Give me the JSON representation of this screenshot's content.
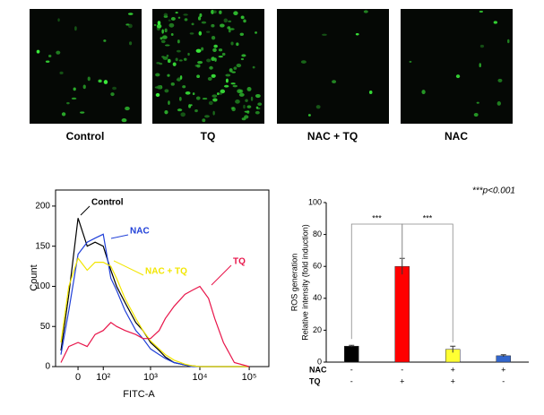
{
  "images": {
    "labels": [
      "Control",
      "TQ",
      "NAC + TQ",
      "NAC"
    ]
  },
  "chart_data": [
    {
      "type": "line",
      "xlabel": "FITC-A",
      "ylabel": "Count",
      "xscale": "biexponential",
      "x": [
        -60,
        -30,
        0,
        30,
        60,
        100,
        150,
        200,
        300,
        500,
        700,
        1000,
        1500,
        2000,
        3000,
        5000,
        7000,
        10000,
        15000,
        20000,
        30000,
        50000,
        100000
      ],
      "series": [
        {
          "name": "Control",
          "color": "#000000",
          "values": [
            20,
            90,
            185,
            150,
            155,
            150,
            120,
            100,
            80,
            55,
            45,
            30,
            20,
            12,
            5,
            2,
            1,
            0,
            0,
            0,
            0,
            0,
            0
          ]
        },
        {
          "name": "NAC",
          "color": "#1f3fd8",
          "values": [
            15,
            70,
            140,
            155,
            160,
            165,
            110,
            95,
            70,
            45,
            35,
            22,
            15,
            10,
            5,
            2,
            0,
            0,
            0,
            0,
            0,
            0,
            0
          ]
        },
        {
          "name": "NAC + TQ",
          "color": "#f2e600",
          "values": [
            30,
            100,
            135,
            120,
            130,
            130,
            125,
            110,
            85,
            60,
            45,
            32,
            22,
            15,
            8,
            3,
            1,
            0,
            0,
            0,
            0,
            0,
            0
          ]
        },
        {
          "name": "TQ",
          "color": "#e8154a",
          "values": [
            5,
            25,
            30,
            25,
            40,
            45,
            55,
            50,
            45,
            40,
            35,
            35,
            45,
            60,
            75,
            90,
            95,
            100,
            85,
            60,
            30,
            5,
            0
          ]
        }
      ],
      "xlim": [
        -85,
        250000
      ],
      "xticks": [
        0,
        {
          "value": 100,
          "label": "10²"
        },
        {
          "value": 1000,
          "label": "10³"
        },
        {
          "value": 10000,
          "label": "10⁴"
        },
        {
          "value": 100000,
          "label": "10⁵"
        }
      ],
      "ylim": [
        0,
        220
      ],
      "yticks": [
        0,
        50,
        100,
        150,
        200
      ]
    },
    {
      "type": "bar",
      "ylabel": [
        "ROS generation",
        "Relative intensity (fold induction)"
      ],
      "annotation": "***p<0.001",
      "values": [
        10,
        60,
        8,
        4
      ],
      "errors": [
        0.5,
        5,
        2,
        0.6
      ],
      "colors": [
        "#000000",
        "#ff0000",
        "#ffff33",
        "#3366cc"
      ],
      "significance": [
        "***",
        "***"
      ],
      "conditions": [
        {
          "label": "NAC",
          "marks": [
            "-",
            "-",
            "+",
            "+"
          ]
        },
        {
          "label": "TQ",
          "marks": [
            "-",
            "+",
            "+",
            "-"
          ]
        }
      ],
      "ylim": [
        0,
        100
      ],
      "yticks": [
        0,
        20,
        40,
        60,
        80,
        100
      ]
    }
  ]
}
